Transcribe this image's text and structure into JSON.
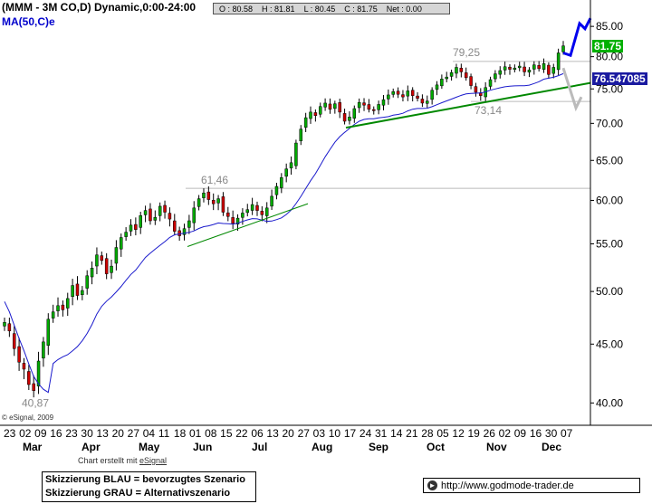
{
  "header": {
    "title": "(MMM - 3M CO,D) Dynamic,0:00-24:00",
    "ma_label": "MA(50,C)e"
  },
  "quote": {
    "o": "O : 80.58",
    "h": "H : 81.81",
    "l": "L : 80.45",
    "c": "C : 81.75",
    "net": "Net : 0.00"
  },
  "labels": {
    "last_price": "81.75",
    "ma_value": "76.547085",
    "annotation_low": "40,87",
    "annotation_mid": "61,46",
    "annotation_high": "79,25",
    "annotation_support": "73,14",
    "copyright": "© eSignal, 2009",
    "credit_prefix": "Chart erstellt mit ",
    "credit_brand": "eSignal",
    "legend_blue": "Skizzierung BLAU = bevorzugtes Szenario",
    "legend_grey": "Skizzierung GRAU = Alternativszenario",
    "url": "http://www.godmode-trader.de"
  },
  "colors": {
    "price_label_bg": "#00b000",
    "ma_label_bg": "#1a1aa0",
    "ma_line": "#1a1acc",
    "trendline": "#008800",
    "scenario_blue": "#0000ee",
    "scenario_grey": "#bbbbbb",
    "candle_up": "#00aa00",
    "candle_down": "#cc0000"
  },
  "chart_data": {
    "type": "candlestick",
    "y_axis": {
      "ticks": [
        40.0,
        45.0,
        50.0,
        55.0,
        60.0,
        65.0,
        70.0,
        75.0,
        80.0,
        85.0
      ],
      "side": "right"
    },
    "x_axis": {
      "day_labels": [
        "23",
        "02",
        "09",
        "16",
        "23",
        "30",
        "13",
        "20",
        "27",
        "04",
        "11",
        "18",
        "01",
        "08",
        "15",
        "22",
        "06",
        "13",
        "20",
        "27",
        "03",
        "10",
        "17",
        "24",
        "31",
        "14",
        "21",
        "28",
        "05",
        "12",
        "19",
        "26",
        "02",
        "09",
        "16",
        "30",
        "07"
      ],
      "month_labels": [
        "Mar",
        "Apr",
        "May",
        "Jun",
        "Jul",
        "Aug",
        "Sep",
        "Oct",
        "Nov",
        "Dec"
      ]
    },
    "horizontal_levels": [
      61.46,
      79.25,
      73.14
    ],
    "series": [
      {
        "name": "MMM",
        "close": [
          47.0,
          46.2,
          44.6,
          43.4,
          42.8,
          41.5,
          41.0,
          43.5,
          45.2,
          47.3,
          48.0,
          48.6,
          48.2,
          49.3,
          50.6,
          49.6,
          50.1,
          51.6,
          52.4,
          53.8,
          53.2,
          51.8,
          52.6,
          54.6,
          55.7,
          56.3,
          57.1,
          56.6,
          58.2,
          58.8,
          57.6,
          58.0,
          59.3,
          58.6,
          57.8,
          56.4,
          55.9,
          56.7,
          57.6,
          59.1,
          60.2,
          60.9,
          60.1,
          59.6,
          60.2,
          58.6,
          58.1,
          57.3,
          57.9,
          58.5,
          58.9,
          59.5,
          58.8,
          58.3,
          59.1,
          60.5,
          61.7,
          62.8,
          63.9,
          64.7,
          67.3,
          69.2,
          70.8,
          71.6,
          71.1,
          72.4,
          72.9,
          72.0,
          72.8,
          71.6,
          70.3,
          70.9,
          72.1,
          73.0,
          72.6,
          72.0,
          71.8,
          72.7,
          73.4,
          74.1,
          74.6,
          74.2,
          73.8,
          74.7,
          74.0,
          73.6,
          72.9,
          73.2,
          74.8,
          75.6,
          76.5,
          76.8,
          77.5,
          78.3,
          77.6,
          76.7,
          75.5,
          74.5,
          74.0,
          75.2,
          76.4,
          77.3,
          77.8,
          78.4,
          78.0,
          78.2,
          78.5,
          77.6,
          77.9,
          78.7,
          78.1,
          78.9,
          77.2,
          78.3,
          80.6,
          81.75
        ]
      }
    ]
  }
}
